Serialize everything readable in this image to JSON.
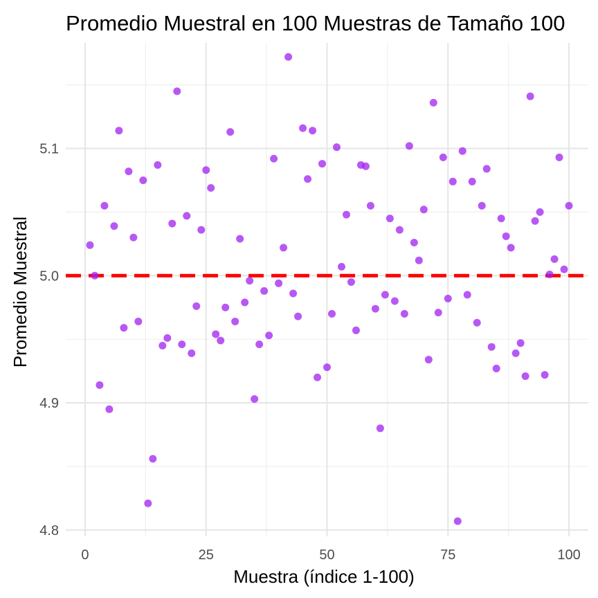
{
  "chart_data": {
    "type": "scatter",
    "title": "Promedio Muestral en 100 Muestras de Tamaño 100",
    "xlabel": "Muestra (índice 1-100)",
    "ylabel": "Promedio Muestral",
    "xlim": [
      -4,
      104
    ],
    "ylim": [
      4.795,
      5.183
    ],
    "x_ticks": [
      0,
      25,
      50,
      75,
      100
    ],
    "x_minor_ticks": [
      12.5,
      37.5,
      62.5,
      87.5
    ],
    "y_ticks": [
      4.8,
      4.9,
      5.0,
      5.1
    ],
    "y_minor_ticks": [
      4.85,
      4.95,
      5.05,
      5.15
    ],
    "grid": true,
    "legend": "none",
    "point_color": "#a020f0",
    "reference_line": {
      "y": 5.0,
      "style": "dashed",
      "color": "#ff0000"
    },
    "series": [
      {
        "x": [
          1,
          2,
          3,
          4,
          5,
          6,
          7,
          8,
          9,
          10,
          11,
          12,
          13,
          14,
          15,
          16,
          17,
          18,
          19,
          20,
          21,
          22,
          23,
          24,
          25,
          26,
          27,
          28,
          29,
          30,
          31,
          32,
          33,
          34,
          35,
          36,
          37,
          38,
          39,
          40,
          41,
          42,
          43,
          44,
          45,
          46,
          47,
          48,
          49,
          50,
          51,
          52,
          53,
          54,
          55,
          56,
          57,
          58,
          59,
          60,
          61,
          62,
          63,
          64,
          65,
          66,
          67,
          68,
          69,
          70,
          71,
          72,
          73,
          74,
          75,
          76,
          77,
          78,
          79,
          80,
          81,
          82,
          83,
          84,
          85,
          86,
          87,
          88,
          89,
          90,
          91,
          92,
          93,
          94,
          95,
          96,
          97,
          98,
          99,
          100
        ],
        "y": [
          5.024,
          5.0,
          4.914,
          5.055,
          4.895,
          5.039,
          5.114,
          4.959,
          5.082,
          5.03,
          4.964,
          5.075,
          4.821,
          4.856,
          5.087,
          4.945,
          4.951,
          5.041,
          5.145,
          4.946,
          5.047,
          4.939,
          4.976,
          5.036,
          5.083,
          5.069,
          4.954,
          4.949,
          4.975,
          5.113,
          4.964,
          5.029,
          4.979,
          4.996,
          4.903,
          4.946,
          4.988,
          4.953,
          5.092,
          4.994,
          5.022,
          5.172,
          4.986,
          4.968,
          5.116,
          5.076,
          5.114,
          4.92,
          5.088,
          4.928,
          4.97,
          5.101,
          5.007,
          5.048,
          4.995,
          4.957,
          5.087,
          5.086,
          5.055,
          4.974,
          4.88,
          4.985,
          5.045,
          4.98,
          5.036,
          4.97,
          5.102,
          5.026,
          5.012,
          5.052,
          4.934,
          5.136,
          4.971,
          5.093,
          4.982,
          5.074,
          4.807,
          5.098,
          4.985,
          5.074,
          4.963,
          5.055,
          5.084,
          4.944,
          4.927,
          5.045,
          5.031,
          5.022,
          4.939,
          4.947,
          4.921,
          5.141,
          5.043,
          5.05,
          4.922,
          5.001,
          5.013,
          5.093,
          5.005,
          5.055
        ]
      }
    ]
  }
}
